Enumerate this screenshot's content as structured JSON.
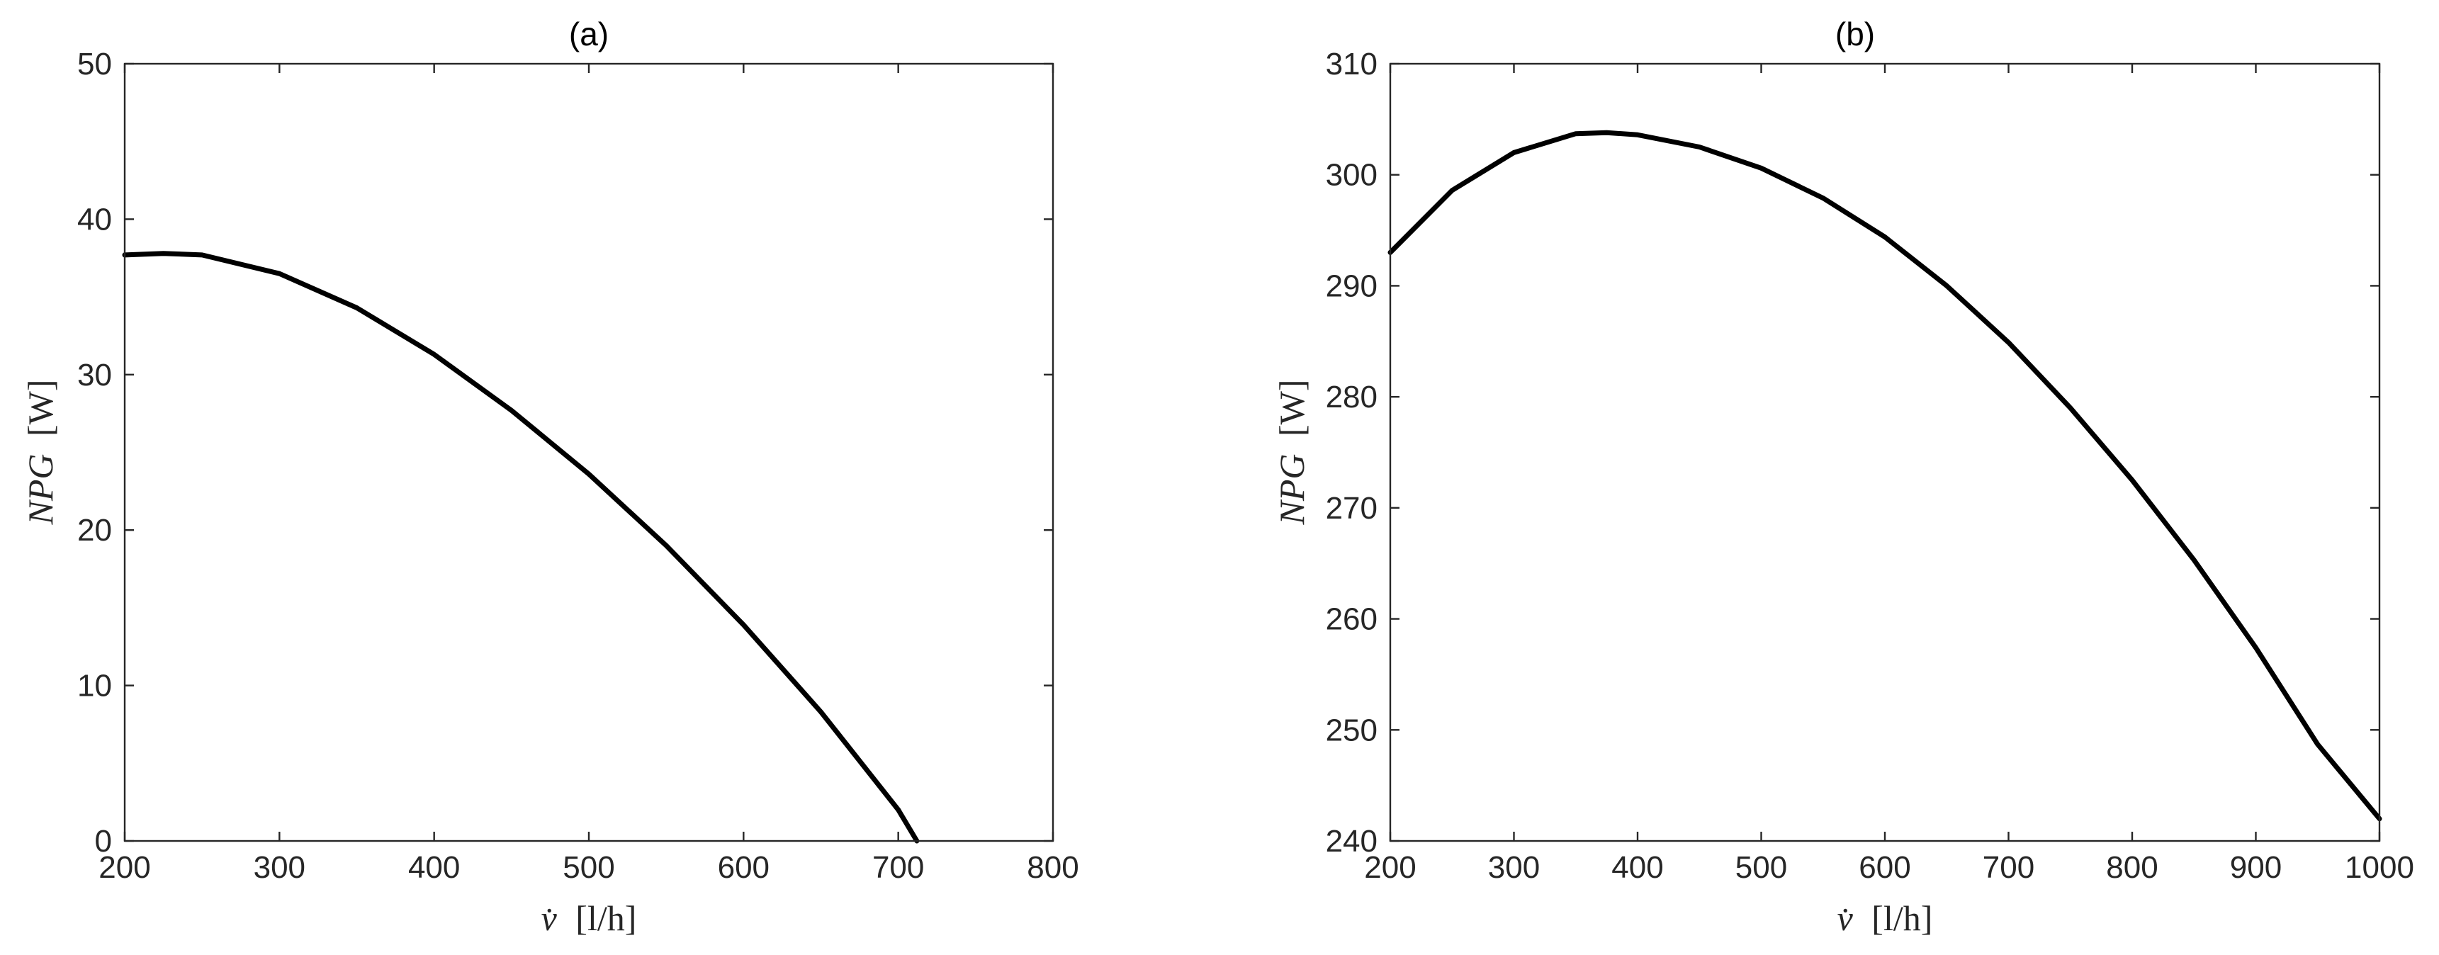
{
  "chart_data": [
    {
      "type": "line",
      "title": "(a)",
      "xlabel_symbol": "v̇",
      "xlabel_unit": "[l/h]",
      "ylabel_symbol": "NPG",
      "ylabel_unit": "[W]",
      "xlim": [
        200,
        800
      ],
      "ylim": [
        0,
        50
      ],
      "xticks": [
        200,
        300,
        400,
        500,
        600,
        700,
        800
      ],
      "yticks": [
        0,
        10,
        20,
        30,
        40,
        50
      ],
      "grid": false,
      "series": [
        {
          "color": "#000000",
          "x": [
            200,
            225,
            250,
            300,
            350,
            400,
            450,
            500,
            550,
            600,
            650,
            700,
            712
          ],
          "y": [
            37.7,
            37.8,
            37.7,
            36.5,
            34.3,
            31.3,
            27.7,
            23.6,
            19.0,
            13.9,
            8.3,
            2.0,
            0.0
          ]
        }
      ]
    },
    {
      "type": "line",
      "title": "(b)",
      "xlabel_symbol": "v̇",
      "xlabel_unit": "[l/h]",
      "ylabel_symbol": "NPG",
      "ylabel_unit": "[W]",
      "xlim": [
        200,
        1000
      ],
      "ylim": [
        240,
        310
      ],
      "xticks": [
        200,
        300,
        400,
        500,
        600,
        700,
        800,
        900,
        1000
      ],
      "yticks": [
        240,
        250,
        260,
        270,
        280,
        290,
        300,
        310
      ],
      "grid": false,
      "series": [
        {
          "color": "#000000",
          "x": [
            200,
            250,
            300,
            350,
            375,
            400,
            450,
            500,
            550,
            600,
            650,
            700,
            750,
            800,
            850,
            900,
            950,
            1000
          ],
          "y": [
            293.0,
            298.6,
            302.0,
            303.7,
            303.8,
            303.6,
            302.5,
            300.6,
            297.9,
            294.4,
            290.0,
            284.9,
            279.0,
            272.5,
            265.3,
            257.4,
            248.7,
            242.0
          ]
        }
      ]
    }
  ]
}
